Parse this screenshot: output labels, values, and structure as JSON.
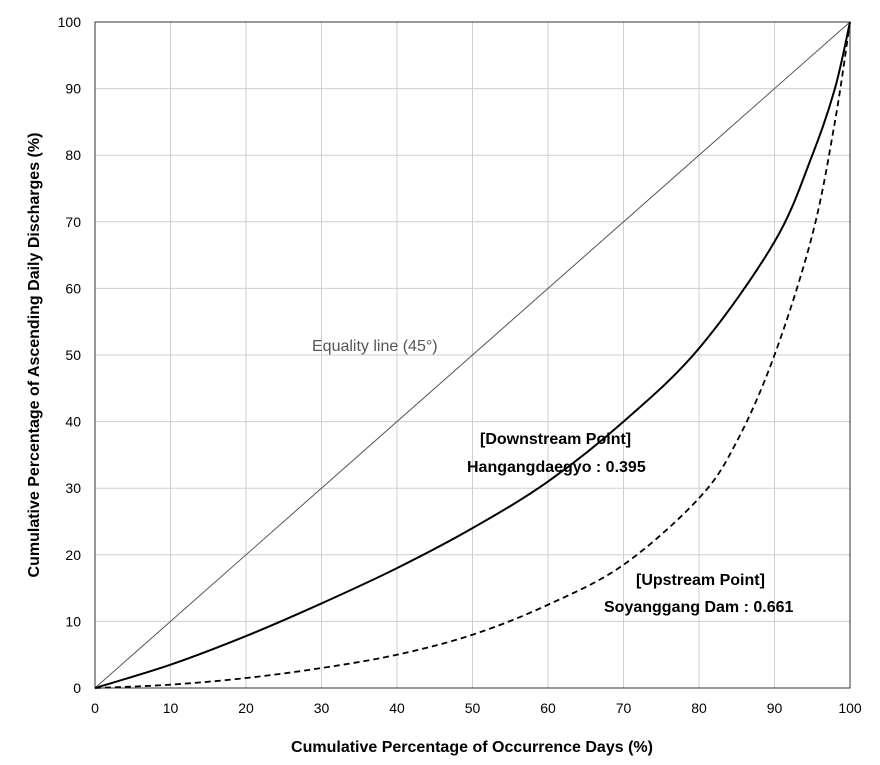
{
  "chart_data": {
    "type": "line",
    "xlabel": "Cumulative Percentage of Occurrence Days (%)",
    "ylabel": "Cumulative Percentage of Ascending Daily Discharges (%)",
    "xlim": [
      0,
      100
    ],
    "ylim": [
      0,
      100
    ],
    "x_ticks": [
      0,
      10,
      20,
      30,
      40,
      50,
      60,
      70,
      80,
      90,
      100
    ],
    "y_ticks": [
      0,
      10,
      20,
      30,
      40,
      50,
      60,
      70,
      80,
      90,
      100
    ],
    "grid": true,
    "series": [
      {
        "key": "equality",
        "style": "thin-solid",
        "color": "#555555",
        "x": [
          0,
          100
        ],
        "y": [
          0,
          100
        ]
      },
      {
        "key": "downstream",
        "style": "solid",
        "color": "#000000",
        "x": [
          0,
          10,
          20,
          30,
          40,
          50,
          60,
          70,
          80,
          90,
          95,
          98,
          100
        ],
        "y": [
          0,
          3.5,
          7.8,
          12.7,
          18,
          24,
          31,
          40,
          51,
          67,
          80,
          90,
          100
        ]
      },
      {
        "key": "upstream",
        "style": "dashed",
        "color": "#000000",
        "x": [
          0,
          10,
          20,
          30,
          40,
          50,
          60,
          70,
          80,
          85,
          90,
          95,
          98,
          100
        ],
        "y": [
          0,
          0.5,
          1.5,
          3,
          5,
          8,
          12.5,
          18.5,
          28.5,
          37,
          50,
          68,
          85,
          100
        ]
      }
    ],
    "annotations": {
      "equality": "Equality line (45°)",
      "downstream_title": "[Downstream Point]",
      "downstream_value": "Hangangdaegyo : 0.395",
      "upstream_title": "[Upstream Point]",
      "upstream_value": "Soyanggang Dam : 0.661"
    }
  }
}
